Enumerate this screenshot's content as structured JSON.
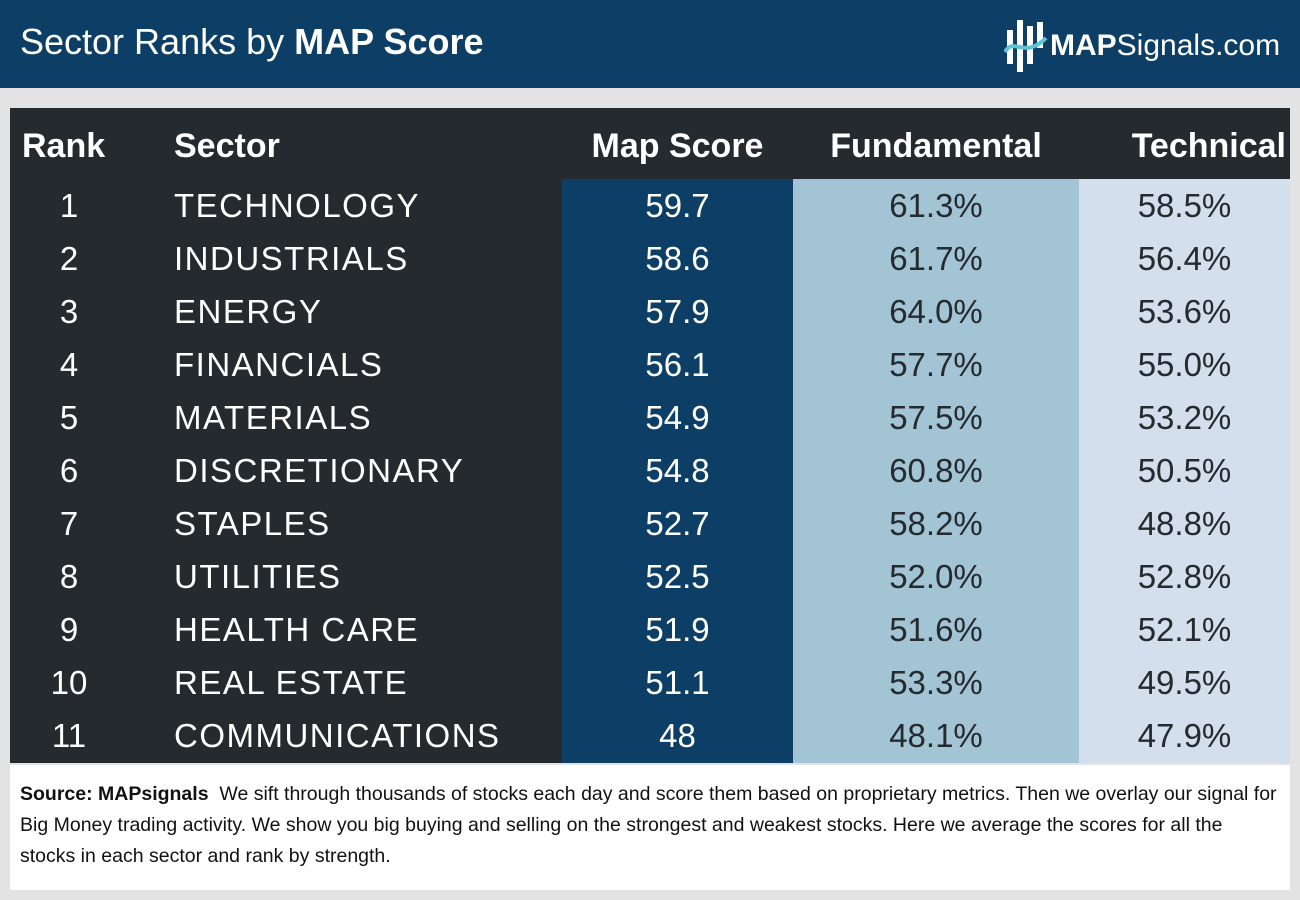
{
  "header": {
    "title_prefix": "Sector Ranks by ",
    "title_bold": "MAP Score",
    "brand_bold": "MAP",
    "brand_rest": "Signals.com",
    "brand_icon": "bar-chart-logo-icon"
  },
  "colors": {
    "header_bg": "#0d3f66",
    "table_bg": "#252a2f",
    "map_col": "#0d3f66",
    "fund_col": "#a2c4d5",
    "tech_col": "#d3dfec"
  },
  "chart_data": {
    "type": "table",
    "title": "Sector Ranks by MAP Score",
    "columns": [
      "Rank",
      "Sector",
      "Map Score",
      "Fundamental",
      "Technical"
    ],
    "rows": [
      {
        "rank": "1",
        "sector": "TECHNOLOGY",
        "map_score": "59.7",
        "fundamental": "61.3%",
        "technical": "58.5%"
      },
      {
        "rank": "2",
        "sector": "INDUSTRIALS",
        "map_score": "58.6",
        "fundamental": "61.7%",
        "technical": "56.4%"
      },
      {
        "rank": "3",
        "sector": "ENERGY",
        "map_score": "57.9",
        "fundamental": "64.0%",
        "technical": "53.6%"
      },
      {
        "rank": "4",
        "sector": "FINANCIALS",
        "map_score": "56.1",
        "fundamental": "57.7%",
        "technical": "55.0%"
      },
      {
        "rank": "5",
        "sector": "MATERIALS",
        "map_score": "54.9",
        "fundamental": "57.5%",
        "technical": "53.2%"
      },
      {
        "rank": "6",
        "sector": "DISCRETIONARY",
        "map_score": "54.8",
        "fundamental": "60.8%",
        "technical": "50.5%"
      },
      {
        "rank": "7",
        "sector": "STAPLES",
        "map_score": "52.7",
        "fundamental": "58.2%",
        "technical": "48.8%"
      },
      {
        "rank": "8",
        "sector": "UTILITIES",
        "map_score": "52.5",
        "fundamental": "52.0%",
        "technical": "52.8%"
      },
      {
        "rank": "9",
        "sector": "HEALTH CARE",
        "map_score": "51.9",
        "fundamental": "51.6%",
        "technical": "52.1%"
      },
      {
        "rank": "10",
        "sector": "REAL ESTATE",
        "map_score": "51.1",
        "fundamental": "53.3%",
        "technical": "49.5%"
      },
      {
        "rank": "11",
        "sector": "COMMUNICATIONS",
        "map_score": "48",
        "fundamental": "48.1%",
        "technical": "47.9%"
      }
    ]
  },
  "footer": {
    "source_label": "Source:  MAPsignals",
    "text": "We sift through thousands of stocks each day and score them based on proprietary metrics. Then we overlay our signal for Big Money trading activity. We show you big buying and selling on the strongest and weakest stocks. Here we average the scores for all the stocks in each sector and rank by strength."
  }
}
